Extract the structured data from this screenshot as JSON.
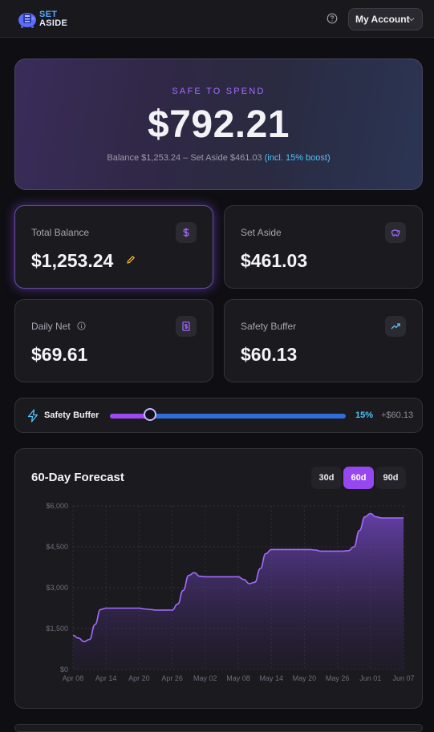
{
  "header": {
    "logo": {
      "line1": "SET",
      "line2": "ASIDE"
    },
    "help_icon": "question-circle-icon",
    "account_label": "My Account"
  },
  "hero": {
    "label": "SAFE TO SPEND",
    "amount": "$792.21",
    "subtitle": "Balance $1,253.24 – Set Aside $461.03",
    "boost": "(incl. 15% boost)"
  },
  "cards": {
    "total_balance": {
      "label": "Total Balance",
      "amount": "$1,253.24",
      "icon": "dollar-icon"
    },
    "set_aside": {
      "label": "Set Aside",
      "amount": "$461.03",
      "icon": "piggy-bank-icon"
    },
    "daily_net": {
      "label": "Daily Net",
      "amount": "$69.61",
      "icon": "banknote-icon"
    },
    "safety_buffer": {
      "label": "Safety Buffer",
      "amount": "$60.13",
      "icon": "trending-up-icon"
    }
  },
  "buffer_slider": {
    "label": "Safety Buffer",
    "percent_label": "15%",
    "percent_value": 15,
    "slider_position": 0.17,
    "amount": "+$60.13",
    "icon": "lightning-icon"
  },
  "forecast": {
    "title": "60-Day Forecast",
    "ranges": [
      "30d",
      "60d",
      "90d"
    ],
    "active_range": "60d"
  },
  "colors": {
    "accent_purple": "#9747f0",
    "accent_blue": "#4fc3f7",
    "line": "#a46bff"
  },
  "chart_data": {
    "type": "area",
    "title": "",
    "xlabel": "",
    "ylabel": "",
    "ylim": [
      0,
      6000
    ],
    "yticks": [
      0,
      1500,
      3000,
      4500,
      6000
    ],
    "ytick_labels": [
      "$0",
      "$1,500",
      "$3,000",
      "$4,500",
      "$6,000"
    ],
    "xtick_labels": [
      "Apr 08",
      "Apr 14",
      "Apr 20",
      "Apr 26",
      "May 02",
      "May 08",
      "May 14",
      "May 20",
      "May 26",
      "Jun 01",
      "Jun 07"
    ],
    "grid": true,
    "series": [
      {
        "x": [
          "Apr 08",
          "Apr 09",
          "Apr 10",
          "Apr 11",
          "Apr 12",
          "Apr 13",
          "Apr 14",
          "Apr 15",
          "Apr 16",
          "Apr 17",
          "Apr 18",
          "Apr 19",
          "Apr 20",
          "Apr 21",
          "Apr 22",
          "Apr 23",
          "Apr 24",
          "Apr 25",
          "Apr 26",
          "Apr 27",
          "Apr 28",
          "Apr 29",
          "Apr 30",
          "May 01",
          "May 02",
          "May 03",
          "May 04",
          "May 05",
          "May 06",
          "May 07",
          "May 08",
          "May 09",
          "May 10",
          "May 11",
          "May 12",
          "May 13",
          "May 14",
          "May 15",
          "May 16",
          "May 17",
          "May 18",
          "May 19",
          "May 20",
          "May 21",
          "May 22",
          "May 23",
          "May 24",
          "May 25",
          "May 26",
          "May 27",
          "May 28",
          "May 29",
          "May 30",
          "May 31",
          "Jun 01",
          "Jun 02",
          "Jun 03",
          "Jun 04",
          "Jun 05",
          "Jun 06",
          "Jun 07"
        ],
        "values": [
          1253,
          1150,
          1020,
          1100,
          1650,
          2200,
          2250,
          2250,
          2250,
          2250,
          2250,
          2250,
          2250,
          2220,
          2200,
          2180,
          2180,
          2180,
          2180,
          2400,
          2900,
          3450,
          3550,
          3420,
          3400,
          3400,
          3400,
          3400,
          3400,
          3400,
          3400,
          3300,
          3150,
          3200,
          3700,
          4250,
          4400,
          4400,
          4400,
          4400,
          4400,
          4400,
          4400,
          4400,
          4380,
          4340,
          4340,
          4340,
          4340,
          4340,
          4360,
          4500,
          5100,
          5600,
          5720,
          5600,
          5560,
          5560,
          5560,
          5560,
          5560
        ]
      }
    ]
  }
}
